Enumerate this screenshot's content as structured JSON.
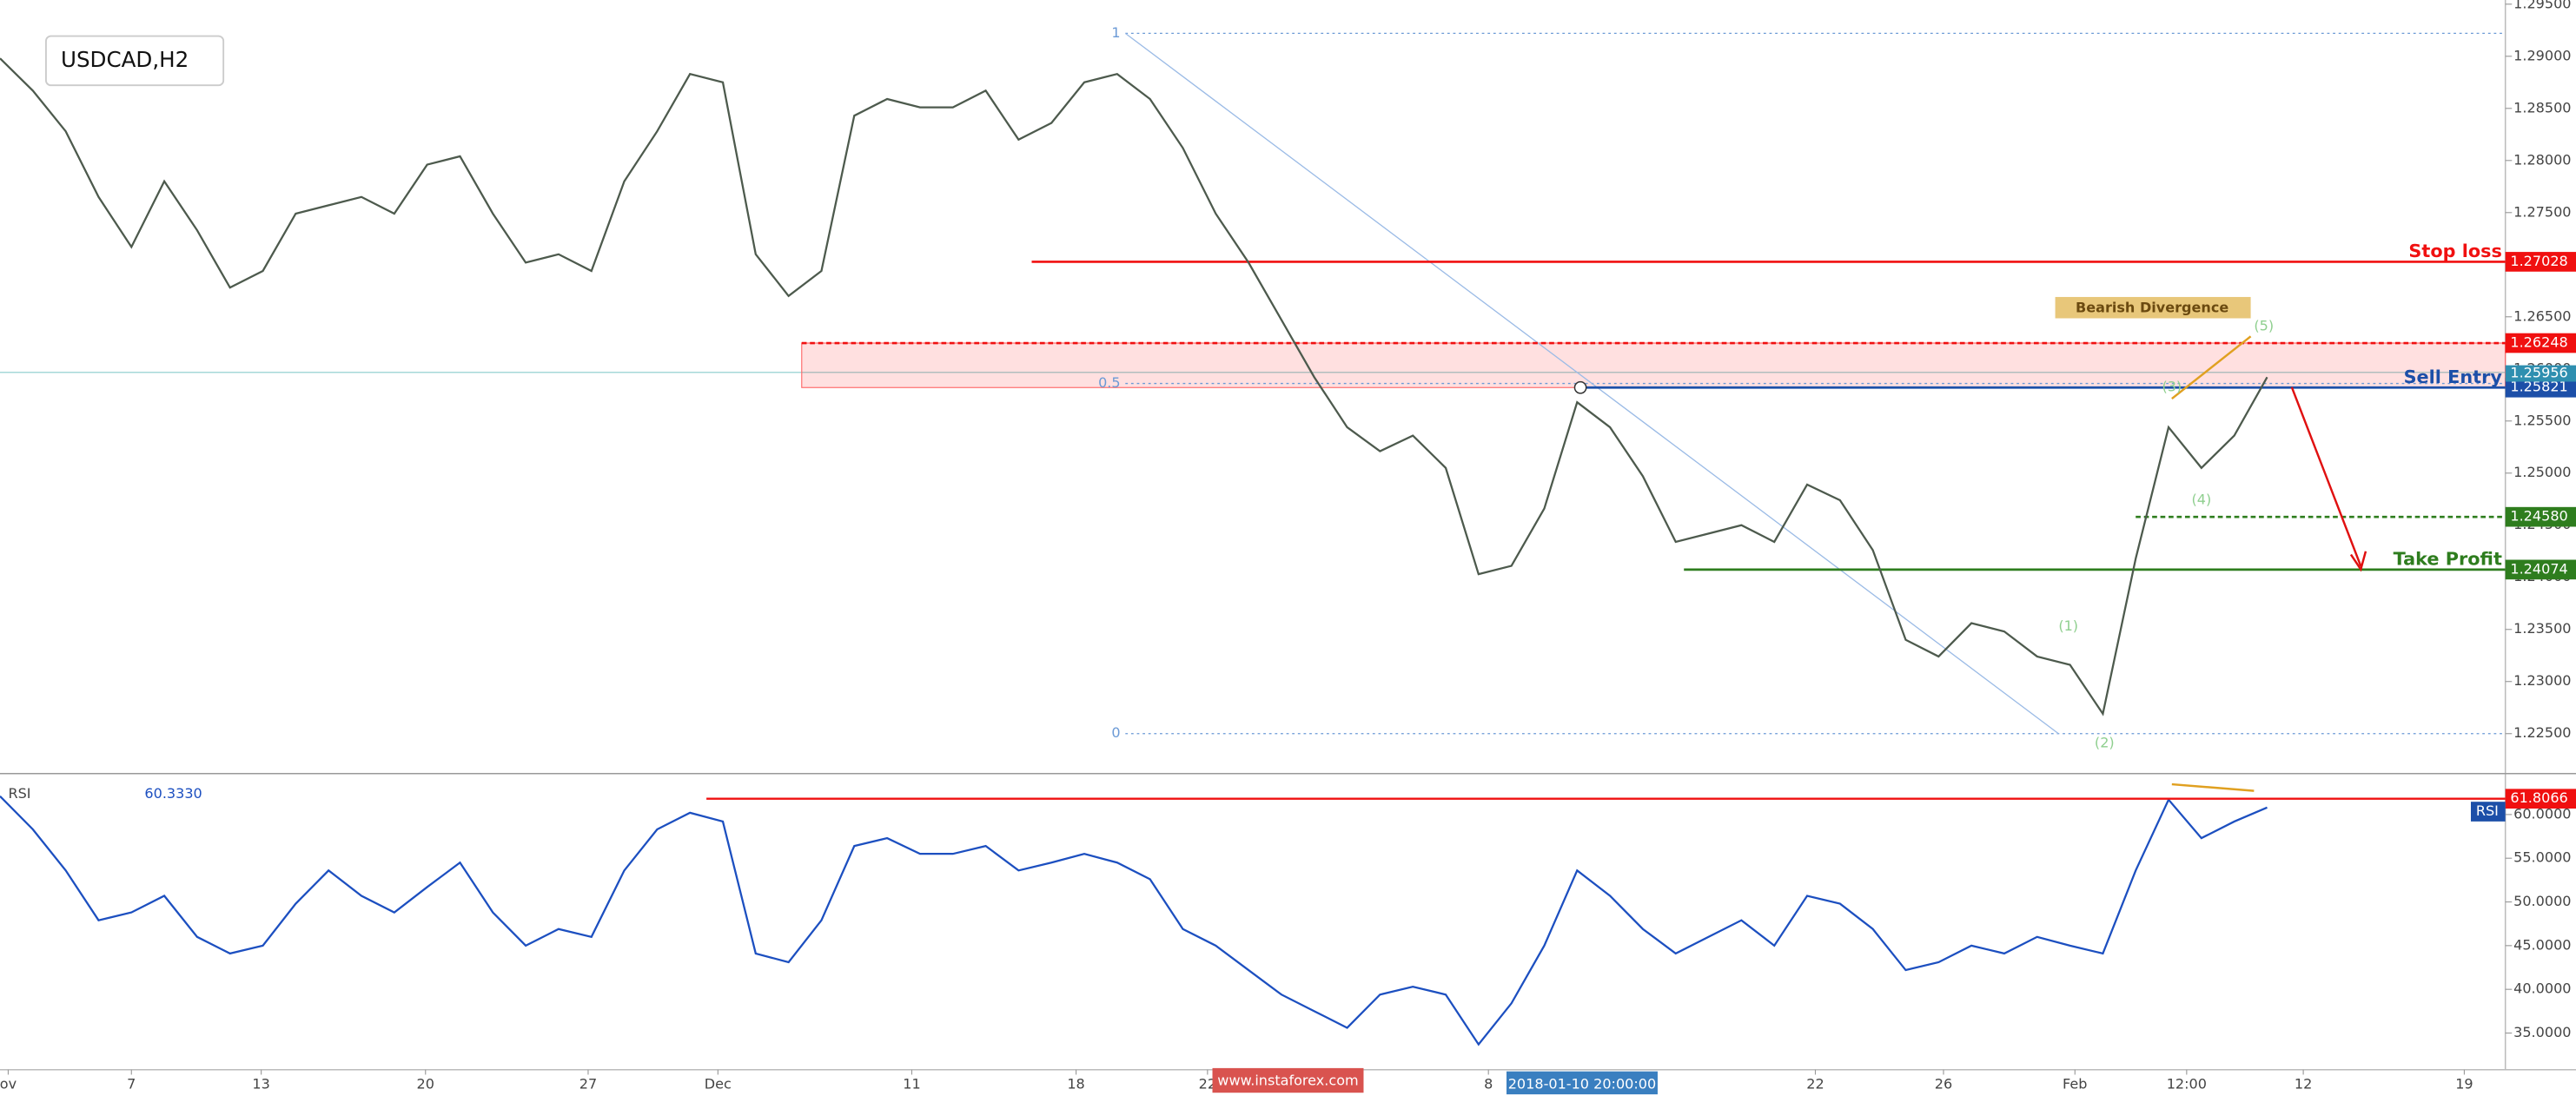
{
  "chart_data": [
    {
      "type": "line",
      "title": "USDCAD,H2",
      "color": "#4d5a4d",
      "values": [
        1.2898,
        1.2867,
        1.2828,
        1.2765,
        1.2717,
        1.278,
        1.2733,
        1.2678,
        1.2694,
        1.2749,
        1.2757,
        1.2765,
        1.2749,
        1.2796,
        1.2804,
        1.2749,
        1.2702,
        1.271,
        1.2694,
        1.278,
        1.2828,
        1.2883,
        1.2875,
        1.271,
        1.267,
        1.2694,
        1.2843,
        1.2859,
        1.2851,
        1.2851,
        1.2867,
        1.282,
        1.2836,
        1.2875,
        1.2883,
        1.2859,
        1.2812,
        1.2749,
        1.2702,
        1.2647,
        1.2592,
        1.2544,
        1.2521,
        1.2536,
        1.2505,
        1.2403,
        1.2411,
        1.2466,
        1.2568,
        1.2544,
        1.2497,
        1.2434,
        1.2442,
        1.245,
        1.2434,
        1.2489,
        1.2474,
        1.2426,
        1.234,
        1.2324,
        1.2356,
        1.2348,
        1.2324,
        1.2316,
        1.2269,
        1.2418,
        1.2544,
        1.2505,
        1.2536,
        1.2592
      ],
      "xlim": [
        0,
        76.25
      ],
      "xticks": [
        {
          "value": 0.25,
          "label": "ov"
        },
        {
          "value": 4,
          "label": "7"
        },
        {
          "value": 7.95,
          "label": "13"
        },
        {
          "value": 12.95,
          "label": "20"
        },
        {
          "value": 17.9,
          "label": "27"
        },
        {
          "value": 21.85,
          "label": "Dec"
        },
        {
          "value": 27.75,
          "label": "11"
        },
        {
          "value": 32.75,
          "label": "18"
        },
        {
          "value": 36.75,
          "label": "22"
        },
        {
          "value": 45.3,
          "label": "8"
        },
        {
          "value": 55.25,
          "label": "22"
        },
        {
          "value": 59.15,
          "label": "26"
        },
        {
          "value": 63.15,
          "label": "Feb"
        },
        {
          "value": 66.55,
          "label": "12:00"
        },
        {
          "value": 70.1,
          "label": "12"
        },
        {
          "value": 75,
          "label": "19"
        }
      ],
      "ylim": [
        1.2214,
        1.2954
      ],
      "yticks": [
        {
          "value": 1.225,
          "label": "1.22500"
        },
        {
          "value": 1.23,
          "label": "1.23000"
        },
        {
          "value": 1.235,
          "label": "1.23500"
        },
        {
          "value": 1.24,
          "label": "1.24000"
        },
        {
          "value": 1.245,
          "label": "1.24500"
        },
        {
          "value": 1.25,
          "label": "1.25000"
        },
        {
          "value": 1.255,
          "label": "1.25500"
        },
        {
          "value": 1.26,
          "label": "1.26000"
        },
        {
          "value": 1.265,
          "label": "1.26500"
        },
        {
          "value": 1.27,
          "label": "1.27000"
        },
        {
          "value": 1.275,
          "label": "1.27500"
        },
        {
          "value": 1.28,
          "label": "1.28000"
        },
        {
          "value": 1.285,
          "label": "1.28500"
        },
        {
          "value": 1.29,
          "label": "1.29000"
        },
        {
          "value": 1.295,
          "label": "1.29500"
        }
      ],
      "levels": [
        {
          "name": "Stop loss",
          "value": 1.27028,
          "color": "#f01010"
        },
        {
          "value": 1.26248,
          "color": "#f01010",
          "dashed": true
        },
        {
          "name": "Sell Entry",
          "value": 1.25821,
          "color": "#1c4fa8"
        },
        {
          "value": 1.2458,
          "value_label": "1.24580",
          "color": "#2e7d1e",
          "dashed": true
        },
        {
          "name": "Take Profit",
          "value": 1.24074,
          "color": "#2e7d1e"
        }
      ],
      "current": {
        "value": 1.25956,
        "color": "#2f8fb0"
      },
      "fib": [
        {
          "ratio": 1,
          "price": 1.2922
        },
        {
          "ratio": 0.5,
          "price": 1.2586
        },
        {
          "ratio": 0,
          "price": 1.225
        }
      ],
      "divergence_label": "Bearish Divergence",
      "waves": [
        "(1)",
        "(2)",
        "(3)",
        "(4)",
        "(5)"
      ]
    },
    {
      "type": "line",
      "title": "RSI",
      "color": "#1c4fc0",
      "values": [
        62.1,
        58.3,
        53.6,
        47.9,
        48.8,
        50.7,
        46.0,
        44.1,
        45.0,
        49.8,
        53.6,
        50.7,
        48.8,
        51.7,
        54.5,
        48.8,
        45.0,
        46.9,
        46.0,
        53.6,
        58.3,
        60.2,
        59.2,
        44.1,
        43.1,
        47.9,
        56.4,
        57.3,
        55.5,
        55.5,
        56.4,
        53.6,
        54.5,
        55.5,
        54.5,
        52.6,
        46.9,
        45.0,
        42.2,
        39.4,
        37.5,
        35.6,
        39.4,
        40.3,
        39.4,
        33.7,
        38.4,
        45.0,
        53.6,
        50.7,
        46.9,
        44.1,
        46.0,
        47.9,
        45.0,
        50.7,
        49.8,
        46.9,
        42.2,
        43.1,
        45.0,
        44.1,
        46.0,
        45.0,
        44.1,
        53.6,
        61.7,
        57.3,
        59.2,
        60.8
      ],
      "xlim": [
        0,
        76.25
      ],
      "ylim": [
        30.8,
        64.4
      ],
      "yticks": [
        {
          "value": 35,
          "label": "35.0000"
        },
        {
          "value": 40,
          "label": "40.0000"
        },
        {
          "value": 45,
          "label": "45.0000"
        },
        {
          "value": 50,
          "label": "50.0000"
        },
        {
          "value": 55,
          "label": "55.0000"
        },
        {
          "value": 60,
          "label": "60.0000"
        }
      ],
      "last_value": 60.333,
      "last_value_label": "60.3330",
      "level": {
        "value": 61.8066,
        "color": "#f01010"
      }
    }
  ],
  "cursor_label": "2018-01-10 20:00:00",
  "watermark": "www.instaforex.com"
}
